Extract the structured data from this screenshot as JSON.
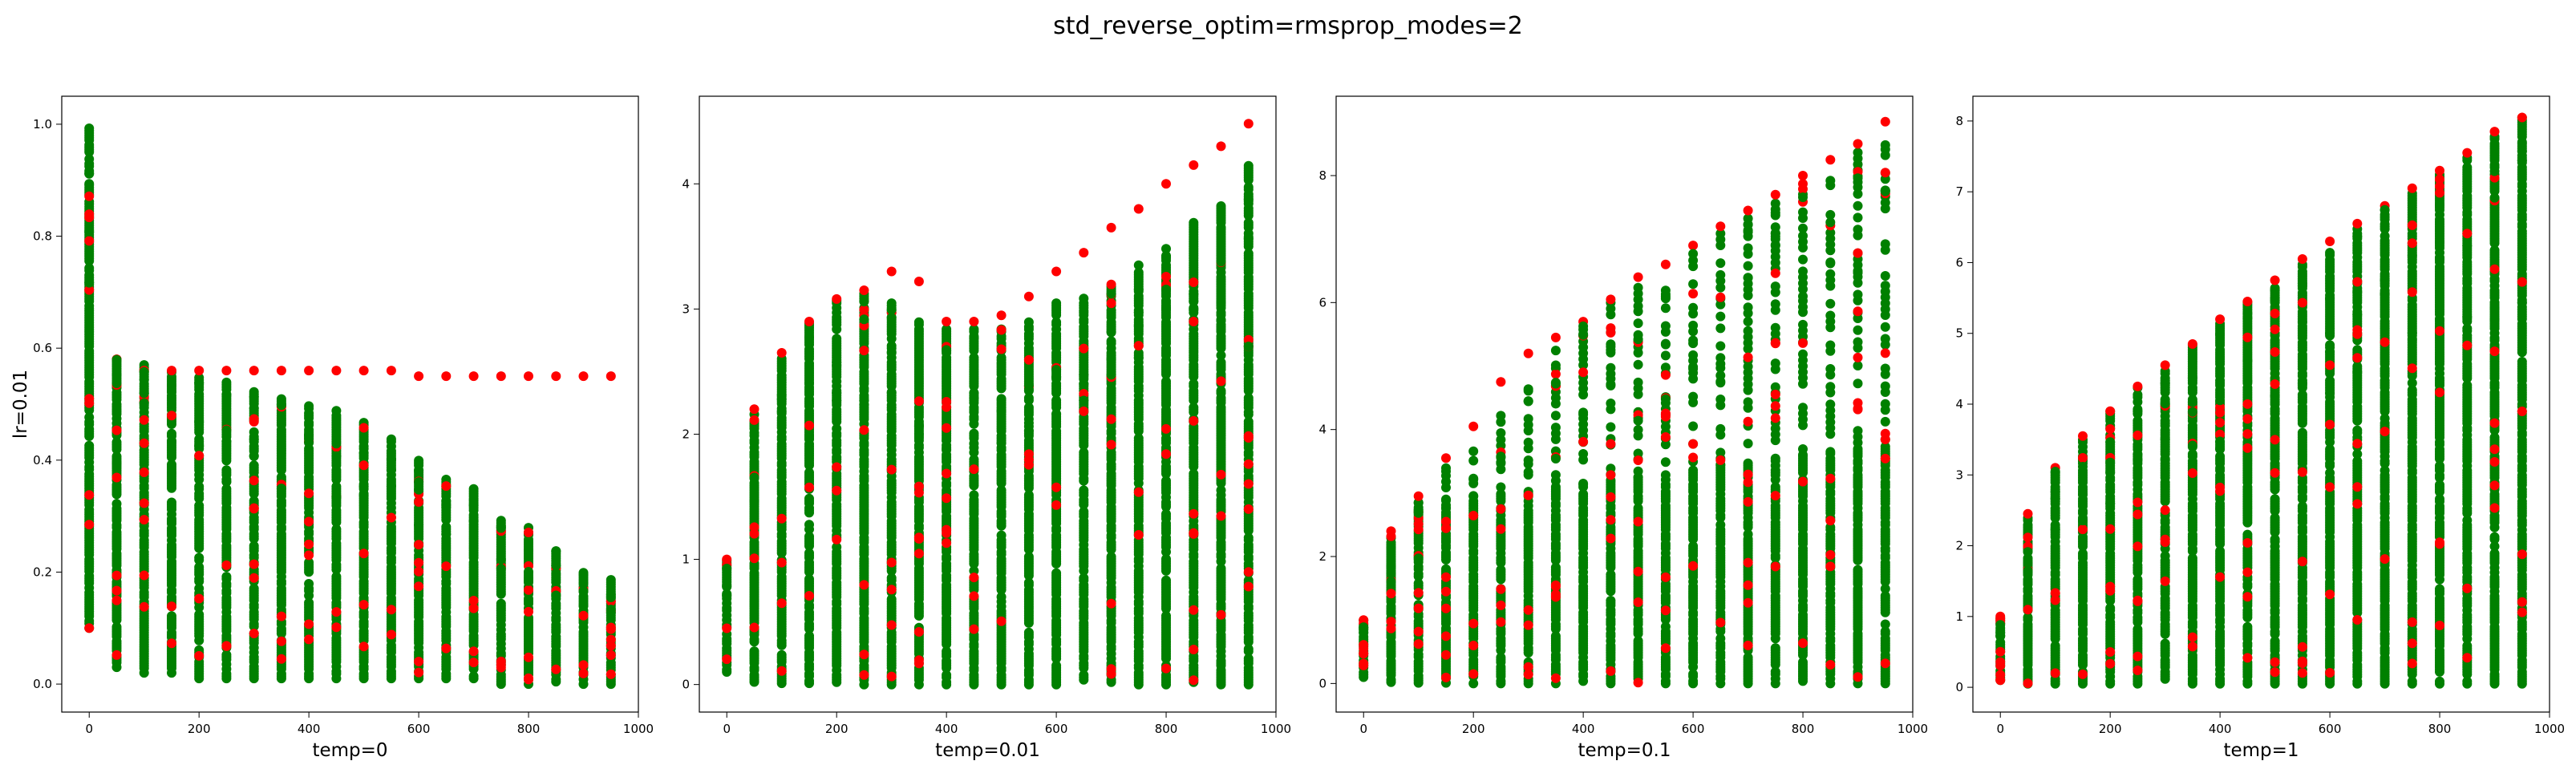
{
  "figure": {
    "title": "std_reverse_optim=rmsprop_modes=2"
  },
  "colors": {
    "red": "#ff0000",
    "green": "#008000",
    "axis": "#000000"
  },
  "chart_data": [
    {
      "type": "scatter",
      "title": "",
      "xlabel": "temp=0",
      "ylabel": "lr=0.01",
      "xlim": [
        -50,
        1000
      ],
      "ylim": [
        -0.05,
        1.05
      ],
      "xticks": [
        0,
        200,
        400,
        600,
        800,
        1000
      ],
      "yticks": [
        0.0,
        0.2,
        0.4,
        0.6,
        0.8,
        1.0
      ],
      "xtick_labels": [
        "0",
        "200",
        "400",
        "600",
        "800",
        "1000"
      ],
      "ytick_labels": [
        "0.0",
        "0.2",
        "0.4",
        "0.6",
        "0.8",
        "1.0"
      ],
      "x": [
        0,
        50,
        100,
        150,
        200,
        250,
        300,
        350,
        400,
        450,
        500,
        550,
        600,
        650,
        700,
        750,
        800,
        850,
        900,
        950
      ],
      "green_range": [
        [
          0.1,
          1.0
        ],
        [
          0.03,
          0.58
        ],
        [
          0.02,
          0.57
        ],
        [
          0.02,
          0.56
        ],
        [
          0.01,
          0.55
        ],
        [
          0.01,
          0.54
        ],
        [
          0.01,
          0.53
        ],
        [
          0.01,
          0.51
        ],
        [
          0.01,
          0.5
        ],
        [
          0.01,
          0.49
        ],
        [
          0.01,
          0.47
        ],
        [
          0.01,
          0.44
        ],
        [
          0.01,
          0.4
        ],
        [
          0.01,
          0.37
        ],
        [
          0.01,
          0.35
        ],
        [
          0.0,
          0.3
        ],
        [
          0.0,
          0.28
        ],
        [
          0.0,
          0.24
        ],
        [
          0.0,
          0.2
        ],
        [
          0.0,
          0.19
        ]
      ],
      "red_top": [
        0.1,
        0.58,
        0.56,
        0.56,
        0.56,
        0.56,
        0.56,
        0.56,
        0.56,
        0.56,
        0.56,
        0.56,
        0.55,
        0.55,
        0.55,
        0.55,
        0.55,
        0.55,
        0.55,
        0.55
      ],
      "series": [
        {
          "name": "",
          "color": "green"
        },
        {
          "name": "",
          "color": "red"
        }
      ],
      "grid": false
    },
    {
      "type": "scatter",
      "title": "",
      "xlabel": "temp=0.01",
      "ylabel": "",
      "xlim": [
        -50,
        1000
      ],
      "ylim": [
        -0.22,
        4.7
      ],
      "xticks": [
        0,
        200,
        400,
        600,
        800,
        1000
      ],
      "yticks": [
        0,
        1,
        2,
        3,
        4
      ],
      "xtick_labels": [
        "0",
        "200",
        "400",
        "600",
        "800",
        "1000"
      ],
      "ytick_labels": [
        "0",
        "1",
        "2",
        "3",
        "4"
      ],
      "x": [
        0,
        50,
        100,
        150,
        200,
        250,
        300,
        350,
        400,
        450,
        500,
        550,
        600,
        650,
        700,
        750,
        800,
        850,
        900,
        950
      ],
      "green_range": [
        [
          0.1,
          1.0
        ],
        [
          0.02,
          2.18
        ],
        [
          0.01,
          2.62
        ],
        [
          0.01,
          2.9
        ],
        [
          0.0,
          3.08
        ],
        [
          0.0,
          3.15
        ],
        [
          0.0,
          3.05
        ],
        [
          0.0,
          2.9
        ],
        [
          0.0,
          2.85
        ],
        [
          0.0,
          2.85
        ],
        [
          0.0,
          2.85
        ],
        [
          0.0,
          2.9
        ],
        [
          0.0,
          3.05
        ],
        [
          0.0,
          3.1
        ],
        [
          0.0,
          3.2
        ],
        [
          0.0,
          3.35
        ],
        [
          0.0,
          3.5
        ],
        [
          0.0,
          3.7
        ],
        [
          0.0,
          3.85
        ],
        [
          0.0,
          4.15
        ]
      ],
      "red_top": [
        1.0,
        2.2,
        2.65,
        2.9,
        3.08,
        3.15,
        3.3,
        3.22,
        2.9,
        2.9,
        2.95,
        3.1,
        3.3,
        3.45,
        3.65,
        3.8,
        4.0,
        4.15,
        4.3,
        4.48
      ],
      "series": [
        {
          "name": "",
          "color": "green"
        },
        {
          "name": "",
          "color": "red"
        }
      ],
      "grid": false
    },
    {
      "type": "scatter",
      "title": "",
      "xlabel": "temp=0.1",
      "ylabel": "",
      "xlim": [
        -50,
        1000
      ],
      "ylim": [
        -0.45,
        9.25
      ],
      "xticks": [
        0,
        200,
        400,
        600,
        800,
        1000
      ],
      "yticks": [
        0,
        2,
        4,
        6,
        8
      ],
      "xtick_labels": [
        "0",
        "200",
        "400",
        "600",
        "800",
        "1000"
      ],
      "ytick_labels": [
        "0",
        "2",
        "4",
        "6",
        "8"
      ],
      "x": [
        0,
        50,
        100,
        150,
        200,
        250,
        300,
        350,
        400,
        450,
        500,
        550,
        600,
        650,
        700,
        750,
        800,
        850,
        900,
        950
      ],
      "green_range": [
        [
          0.1,
          1.0
        ],
        [
          0.02,
          2.3
        ],
        [
          0.01,
          2.85
        ],
        [
          0.01,
          2.9
        ],
        [
          0.0,
          2.95
        ],
        [
          0.0,
          3.0
        ],
        [
          0.0,
          3.05
        ],
        [
          0.0,
          3.1
        ],
        [
          0.0,
          3.15
        ],
        [
          0.0,
          3.2
        ],
        [
          0.0,
          3.25
        ],
        [
          0.0,
          3.3
        ],
        [
          0.0,
          3.4
        ],
        [
          0.0,
          3.45
        ],
        [
          0.0,
          3.5
        ],
        [
          0.0,
          3.55
        ],
        [
          0.0,
          3.6
        ],
        [
          0.0,
          3.65
        ],
        [
          0.0,
          3.7
        ],
        [
          0.0,
          3.75
        ]
      ],
      "upper_green_top": [
        1.0,
        2.35,
        2.9,
        3.4,
        3.95,
        4.45,
        4.9,
        5.3,
        5.65,
        6.0,
        6.3,
        6.55,
        6.8,
        7.1,
        7.4,
        7.65,
        7.9,
        8.15,
        8.45,
        8.75
      ],
      "red_top": [
        1.0,
        2.4,
        2.95,
        3.55,
        4.05,
        4.75,
        5.2,
        5.45,
        5.7,
        6.05,
        6.4,
        6.6,
        6.9,
        7.2,
        7.45,
        7.7,
        8.0,
        8.25,
        8.5,
        8.85
      ],
      "series": [
        {
          "name": "",
          "color": "green"
        },
        {
          "name": "",
          "color": "red"
        }
      ],
      "grid": false
    },
    {
      "type": "scatter",
      "title": "",
      "xlabel": "temp=1",
      "ylabel": "",
      "xlim": [
        -50,
        1000
      ],
      "ylim": [
        -0.35,
        8.35
      ],
      "xticks": [
        0,
        200,
        400,
        600,
        800,
        1000
      ],
      "yticks": [
        0,
        1,
        2,
        3,
        4,
        5,
        6,
        7,
        8
      ],
      "xtick_labels": [
        "0",
        "200",
        "400",
        "600",
        "800",
        "1000"
      ],
      "ytick_labels": [
        "0",
        "1",
        "2",
        "3",
        "4",
        "5",
        "6",
        "7",
        "8"
      ],
      "x": [
        0,
        50,
        100,
        150,
        200,
        250,
        300,
        350,
        400,
        450,
        500,
        550,
        600,
        650,
        700,
        750,
        800,
        850,
        900,
        950
      ],
      "green_range": [
        [
          0.1,
          1.0
        ],
        [
          0.05,
          2.4
        ],
        [
          0.05,
          3.05
        ],
        [
          0.05,
          3.5
        ],
        [
          0.05,
          3.9
        ],
        [
          0.05,
          4.25
        ],
        [
          0.05,
          4.5
        ],
        [
          0.05,
          4.85
        ],
        [
          0.05,
          5.15
        ],
        [
          0.05,
          5.45
        ],
        [
          0.05,
          5.7
        ],
        [
          0.05,
          6.0
        ],
        [
          0.05,
          6.2
        ],
        [
          0.05,
          6.5
        ],
        [
          0.05,
          6.75
        ],
        [
          0.05,
          7.0
        ],
        [
          0.05,
          7.25
        ],
        [
          0.05,
          7.5
        ],
        [
          0.05,
          7.8
        ],
        [
          0.05,
          8.05
        ]
      ],
      "red_top": [
        1.0,
        2.45,
        3.1,
        3.55,
        3.9,
        4.25,
        4.55,
        4.85,
        5.2,
        5.45,
        5.75,
        6.05,
        6.3,
        6.55,
        6.8,
        7.05,
        7.3,
        7.55,
        7.85,
        8.05
      ],
      "series": [
        {
          "name": "",
          "color": "green"
        },
        {
          "name": "",
          "color": "red"
        }
      ],
      "grid": false
    }
  ]
}
